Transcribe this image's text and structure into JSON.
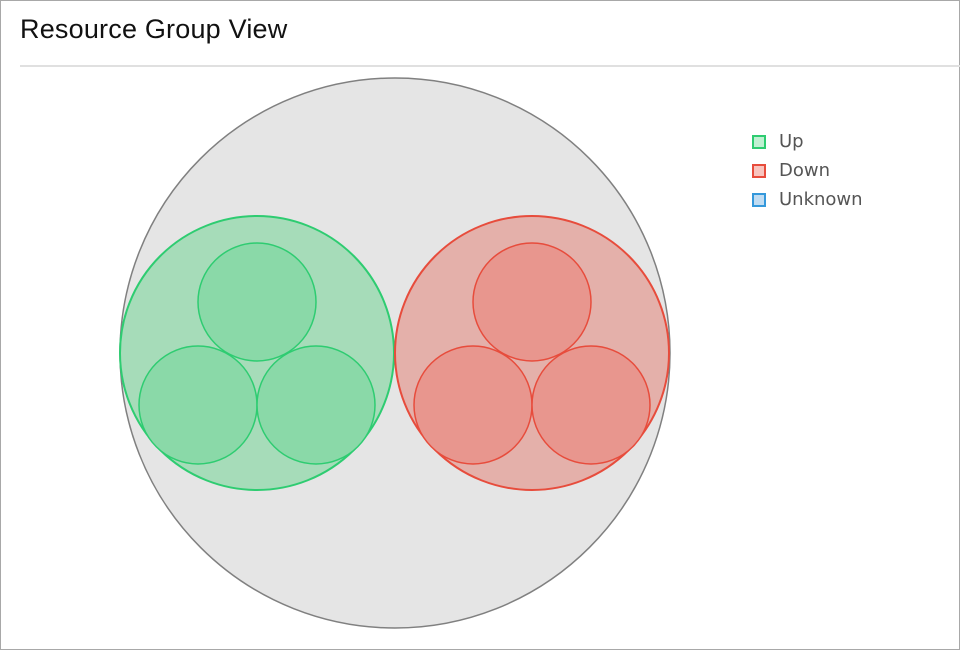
{
  "header": {
    "title": "Resource Group View"
  },
  "legend": [
    {
      "label": "Up",
      "stroke": "#2ecc71",
      "fill": "#c0f0d2"
    },
    {
      "label": "Down",
      "stroke": "#e74c3c",
      "fill": "#f8c4be"
    },
    {
      "label": "Unknown",
      "stroke": "#3498db",
      "fill": "#c0dcf2"
    }
  ],
  "colors": {
    "root_fill": "#e5e5e5",
    "root_stroke": "#808080",
    "up_group_fill": "#a6dcb9",
    "up_child_fill": "#8ad9a8",
    "up_stroke": "#2ecc71",
    "down_group_fill": "#e4b0aa",
    "down_child_fill": "#e8968e",
    "down_stroke": "#e74c3c"
  },
  "hierarchy": {
    "status": "root",
    "children": [
      {
        "status": "up",
        "children": [
          {
            "status": "up"
          },
          {
            "status": "up"
          },
          {
            "status": "up"
          }
        ]
      },
      {
        "status": "down",
        "children": [
          {
            "status": "down"
          },
          {
            "status": "down"
          },
          {
            "status": "down"
          }
        ]
      }
    ]
  }
}
